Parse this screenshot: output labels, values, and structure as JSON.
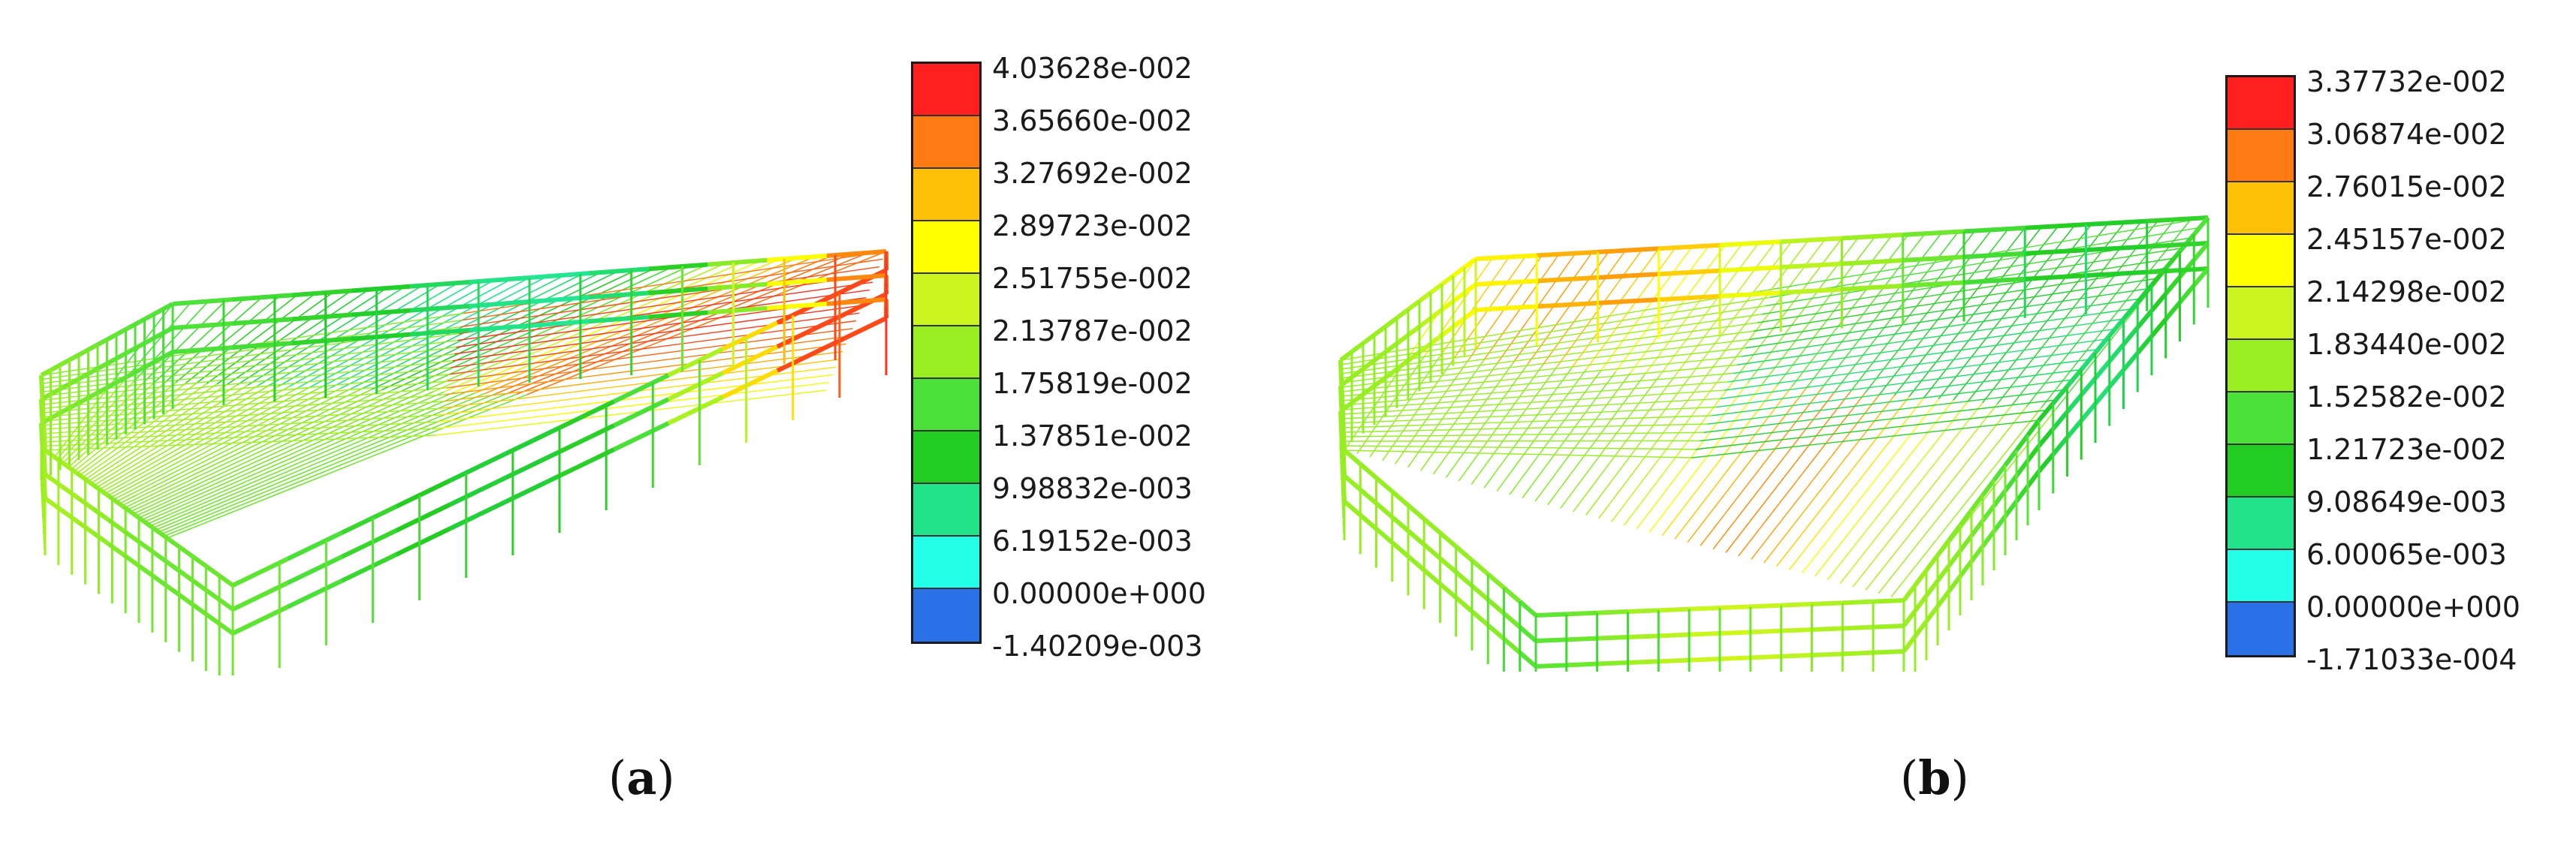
{
  "panels": [
    {
      "id": "a",
      "label": "a",
      "legend": {
        "values": [
          "4.03628e-002",
          "3.65660e-002",
          "3.27692e-002",
          "2.89723e-002",
          "2.51755e-002",
          "2.13787e-002",
          "1.75819e-002",
          "1.37851e-002",
          "9.98832e-003",
          "6.19152e-003",
          "0.00000e+000",
          "-1.40209e-003"
        ]
      }
    },
    {
      "id": "b",
      "label": "b",
      "legend": {
        "values": [
          "3.37732e-002",
          "3.06874e-002",
          "2.76015e-002",
          "2.45157e-002",
          "2.14298e-002",
          "1.83440e-002",
          "1.52582e-002",
          "1.21723e-002",
          "9.08649e-003",
          "6.00065e-003",
          "0.00000e+000",
          "-1.71033e-004"
        ]
      }
    }
  ],
  "colors": {
    "scale": [
      "#ff1f1f",
      "#ff7a12",
      "#ffc108",
      "#ffff00",
      "#caf520",
      "#99ee22",
      "#4ce13a",
      "#22cc22",
      "#22e38a",
      "#22ffe6",
      "#2a70e6"
    ]
  }
}
